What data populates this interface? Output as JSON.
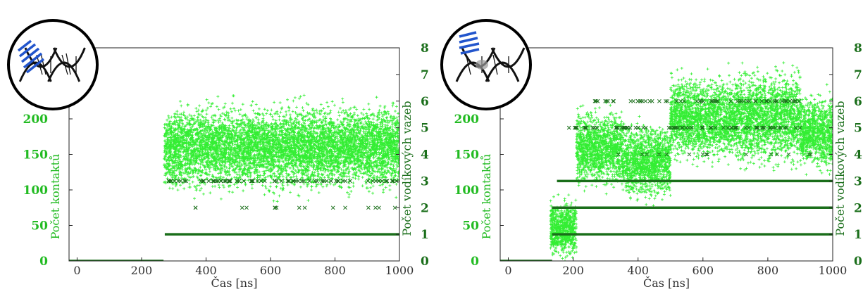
{
  "colors": {
    "contacts": "#33ee33",
    "hbonds": "#1a6e1a",
    "axis_text_green": "#22bb22",
    "axis": "#222222"
  },
  "chart_data": [
    {
      "type": "scatter",
      "icon": "dna-with-stacked-ligand-icon",
      "xlabel": "Čas [ns]",
      "ylabel_left": "Počet kontaktů",
      "ylabel_right": "Počet vodíkových vazeb",
      "xlim": [
        -25,
        1000
      ],
      "ylim_left": [
        0,
        300
      ],
      "ylim_right": [
        0,
        8
      ],
      "x_ticks": [
        0,
        200,
        400,
        600,
        800,
        1000
      ],
      "y_ticks_left": [
        0,
        50,
        100,
        150,
        200
      ],
      "y_ticks_right": [
        0,
        1,
        2,
        3,
        4,
        5,
        6,
        7,
        8
      ],
      "series": [
        {
          "marker": "plus",
          "axis": "left",
          "segments": [
            {
              "x0": -25,
              "x1": 268,
              "mean": 0,
              "spread": 0
            },
            {
              "x0": 270,
              "x1": 1000,
              "mean": 160,
              "spread": 45
            }
          ]
        },
        {
          "marker": "cross",
          "axis": "right",
          "levels": [
            {
              "value": 0,
              "x0": -25,
              "x1": 268,
              "density": "solid"
            },
            {
              "value": 1,
              "x0": 272,
              "x1": 1000,
              "density": "solid"
            },
            {
              "value": 2,
              "x0": 272,
              "x1": 1000,
              "density": "sparse"
            },
            {
              "value": 3,
              "x0": 272,
              "x1": 1000,
              "density": "rare"
            }
          ]
        }
      ]
    },
    {
      "type": "scatter",
      "icon": "dna-with-bound-ligand-icon",
      "xlabel": "Čas [ns]",
      "ylabel_left": "Počet kontaktů",
      "ylabel_right": "Počet vodíkových vazeb",
      "xlim": [
        -25,
        1000
      ],
      "ylim_left": [
        0,
        300
      ],
      "ylim_right": [
        0,
        8
      ],
      "x_ticks": [
        0,
        200,
        400,
        600,
        800,
        1000
      ],
      "y_ticks_left": [
        0,
        50,
        100,
        150,
        200
      ],
      "y_ticks_right": [
        0,
        1,
        2,
        3,
        4,
        5,
        6,
        7,
        8
      ],
      "series": [
        {
          "marker": "plus",
          "axis": "left",
          "segments": [
            {
              "x0": -25,
              "x1": 130,
              "mean": 0,
              "spread": 0
            },
            {
              "x0": 130,
              "x1": 210,
              "mean": 45,
              "spread": 30
            },
            {
              "x0": 210,
              "x1": 350,
              "mean": 160,
              "spread": 40
            },
            {
              "x0": 350,
              "x1": 500,
              "mean": 140,
              "spread": 40
            },
            {
              "x0": 500,
              "x1": 700,
              "mean": 200,
              "spread": 45
            },
            {
              "x0": 700,
              "x1": 900,
              "mean": 200,
              "spread": 50
            },
            {
              "x0": 900,
              "x1": 1000,
              "mean": 180,
              "spread": 40
            }
          ]
        },
        {
          "marker": "cross",
          "axis": "right",
          "levels": [
            {
              "value": 0,
              "x0": -25,
              "x1": 135,
              "density": "solid"
            },
            {
              "value": 1,
              "x0": 135,
              "x1": 1000,
              "density": "solid"
            },
            {
              "value": 2,
              "x0": 135,
              "x1": 1000,
              "density": "solid"
            },
            {
              "value": 3,
              "x0": 150,
              "x1": 1000,
              "density": "solid"
            },
            {
              "value": 4,
              "x0": 260,
              "x1": 1000,
              "density": "sparse"
            },
            {
              "value": 5,
              "x0": 170,
              "x1": 900,
              "density": "rare"
            },
            {
              "value": 6,
              "x0": 260,
              "x1": 900,
              "density": "rare"
            }
          ]
        }
      ]
    }
  ]
}
